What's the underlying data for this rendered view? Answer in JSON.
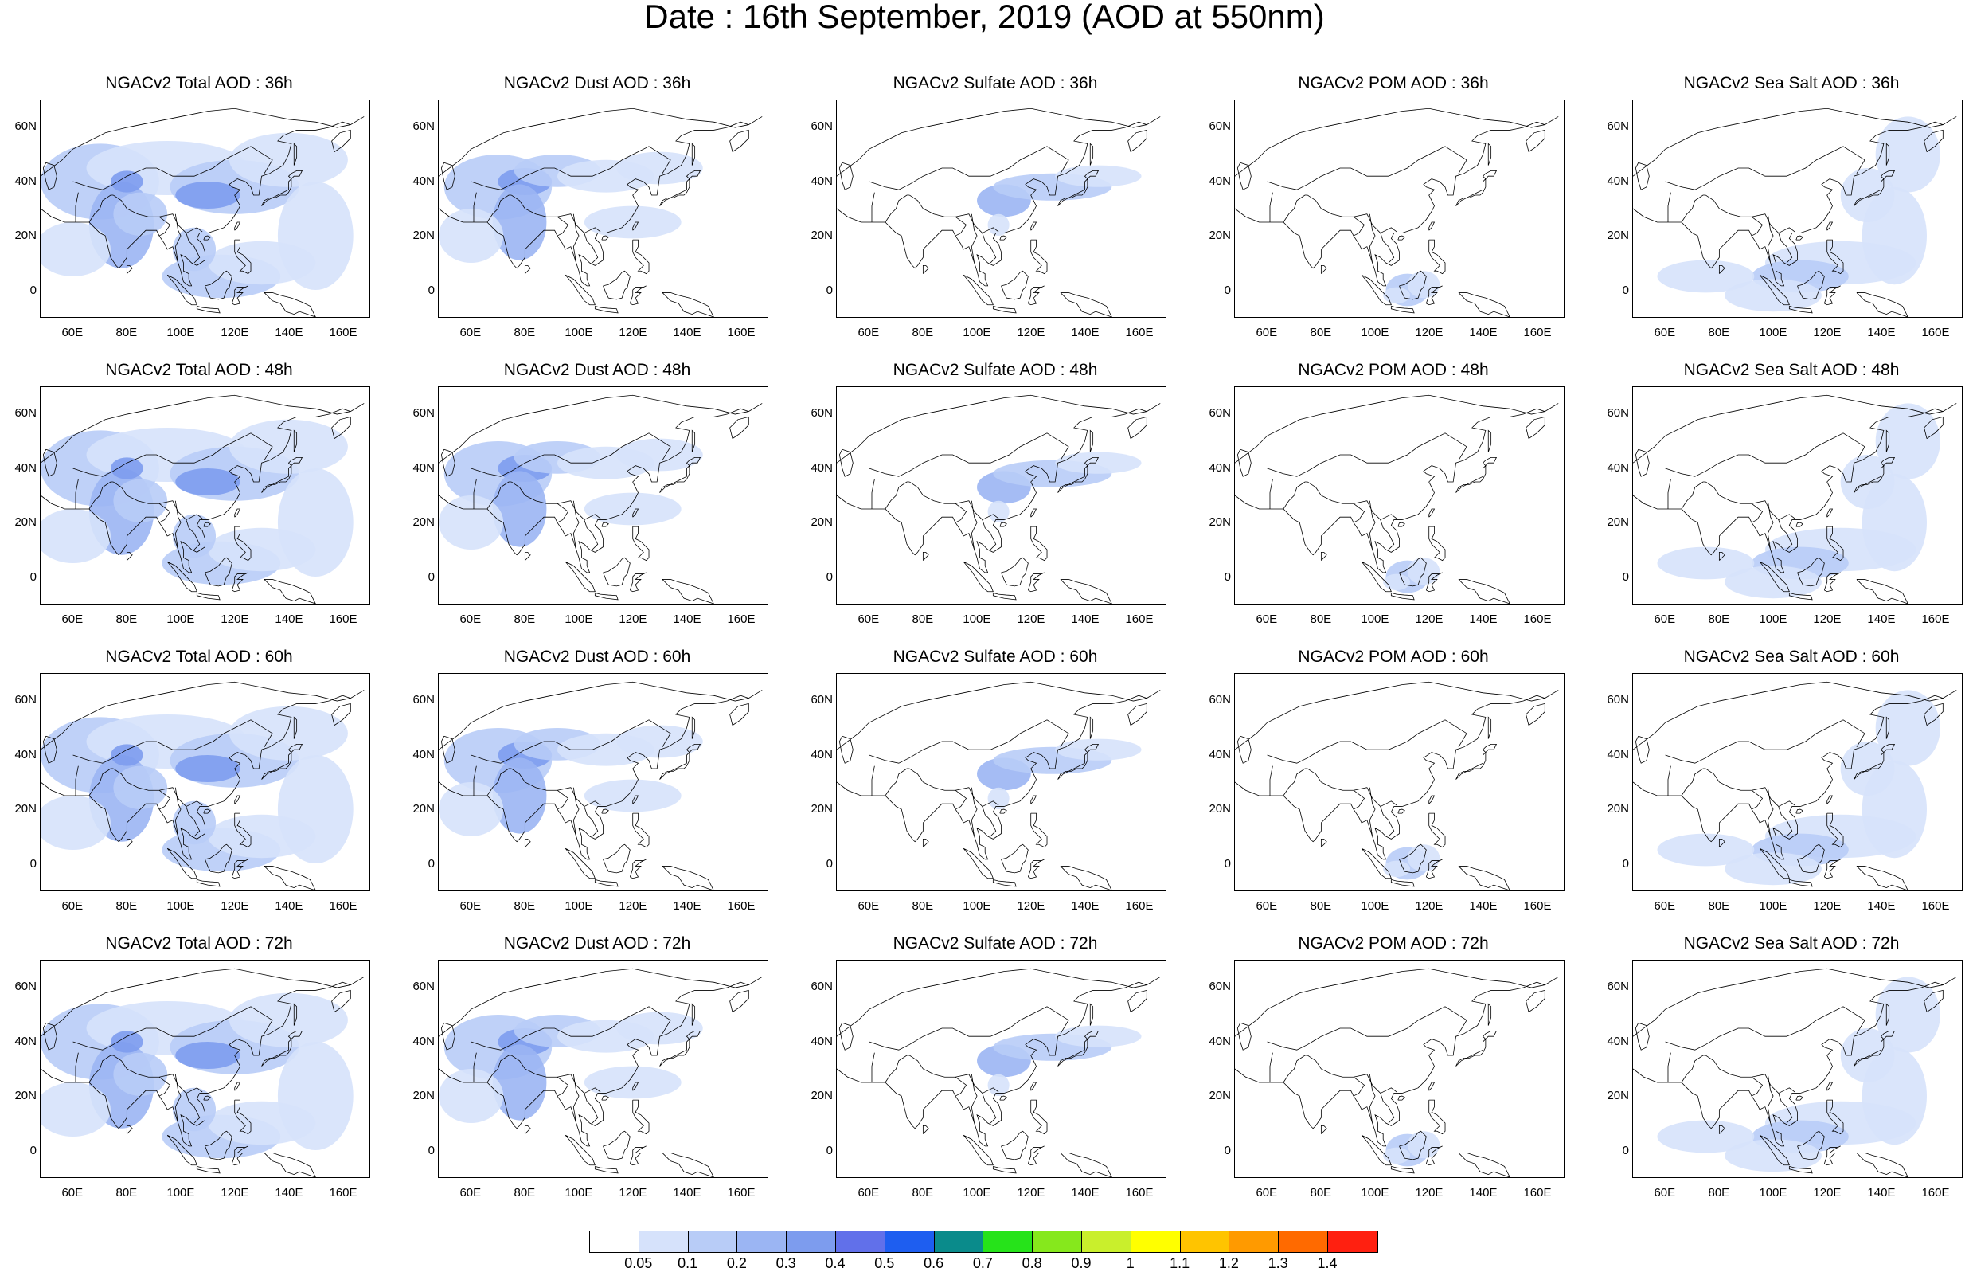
{
  "title": "Date : 16th September, 2019 (AOD at 550nm)",
  "axes": {
    "y_ticks": [
      "60N",
      "40N",
      "20N",
      "0"
    ],
    "x_ticks": [
      "60E",
      "80E",
      "100E",
      "120E",
      "140E",
      "160E"
    ]
  },
  "panels": [
    {
      "title": "NGACv2 Total AOD : 36h",
      "species": "total"
    },
    {
      "title": "NGACv2 Dust AOD : 36h",
      "species": "dust"
    },
    {
      "title": "NGACv2 Sulfate AOD : 36h",
      "species": "sulfate"
    },
    {
      "title": "NGACv2 POM AOD : 36h",
      "species": "pom"
    },
    {
      "title": "NGACv2 Sea Salt AOD : 36h",
      "species": "seasalt"
    },
    {
      "title": "NGACv2 Total AOD : 48h",
      "species": "total"
    },
    {
      "title": "NGACv2 Dust AOD : 48h",
      "species": "dust"
    },
    {
      "title": "NGACv2 Sulfate AOD : 48h",
      "species": "sulfate"
    },
    {
      "title": "NGACv2 POM AOD : 48h",
      "species": "pom"
    },
    {
      "title": "NGACv2 Sea Salt AOD : 48h",
      "species": "seasalt"
    },
    {
      "title": "NGACv2 Total AOD : 60h",
      "species": "total"
    },
    {
      "title": "NGACv2 Dust AOD : 60h",
      "species": "dust"
    },
    {
      "title": "NGACv2 Sulfate AOD : 60h",
      "species": "sulfate"
    },
    {
      "title": "NGACv2 POM AOD : 60h",
      "species": "pom"
    },
    {
      "title": "NGACv2 Sea Salt AOD : 60h",
      "species": "seasalt"
    },
    {
      "title": "NGACv2 Total AOD : 72h",
      "species": "total"
    },
    {
      "title": "NGACv2 Dust AOD : 72h",
      "species": "dust"
    },
    {
      "title": "NGACv2 Sulfate AOD : 72h",
      "species": "sulfate"
    },
    {
      "title": "NGACv2 POM AOD : 72h",
      "species": "pom"
    },
    {
      "title": "NGACv2 Sea Salt  AOD : 72h",
      "species": "seasalt"
    }
  ],
  "colorbar": {
    "labels": [
      "0.05",
      "0.1",
      "0.2",
      "0.3",
      "0.4",
      "0.5",
      "0.6",
      "0.7",
      "0.8",
      "0.9",
      "1",
      "1.1",
      "1.2",
      "1.3",
      "1.4"
    ],
    "colors": [
      "#ffffff",
      "#d6e2fb",
      "#b8ccf7",
      "#9bb5f3",
      "#7d9cee",
      "#6170ea",
      "#1e5ef0",
      "#0a8b8b",
      "#26e31a",
      "#86e81c",
      "#c9ef2c",
      "#ffff00",
      "#ffc400",
      "#ff9a00",
      "#ff6a00",
      "#ff2010"
    ]
  }
}
